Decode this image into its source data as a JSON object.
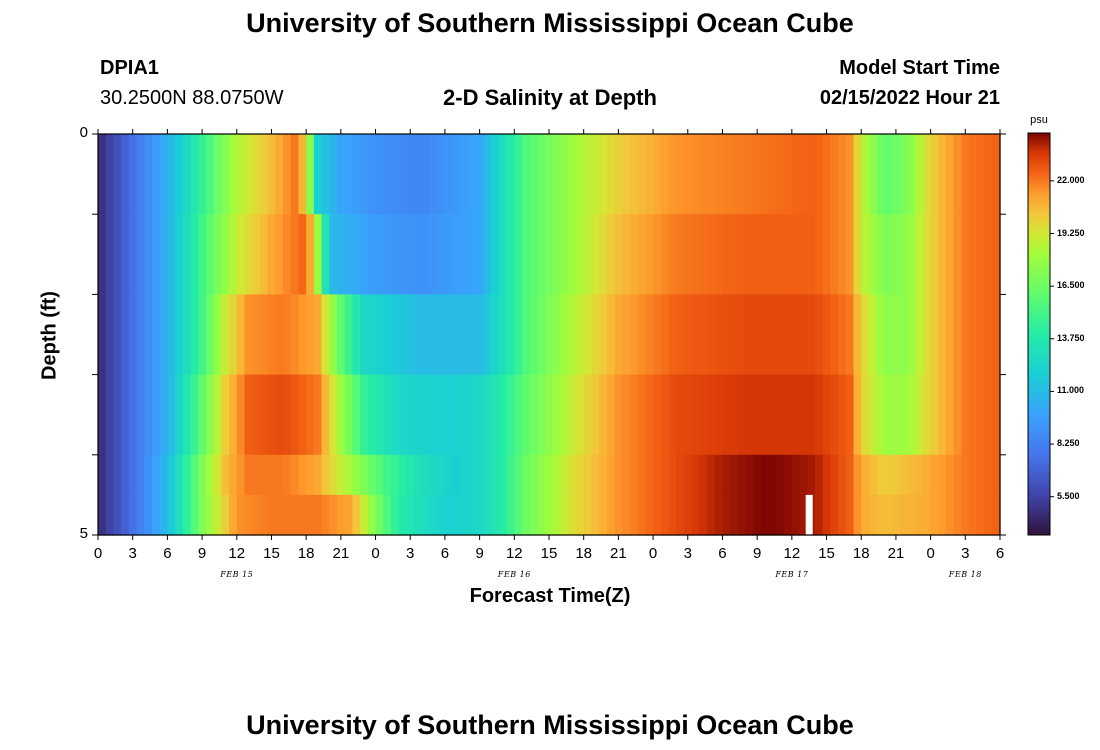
{
  "header": {
    "title": "University of Southern Mississippi Ocean Cube",
    "station_id": "DPIA1",
    "station_coords": "30.2500N  88.0750W",
    "chart_title": "2-D Salinity at Depth",
    "model_start_label": "Model Start Time",
    "model_start_value": "02/15/2022 Hour 21"
  },
  "footer": {
    "title": "University of Southern Mississippi Ocean Cube"
  },
  "chart_data": {
    "type": "heatmap",
    "title": "2-D Salinity at Depth",
    "xlabel": "Forecast Time(Z)",
    "ylabel": "Depth (ft)",
    "x_ticks": [
      "0",
      "3",
      "6",
      "9",
      "12",
      "15",
      "18",
      "21",
      "0",
      "3",
      "6",
      "9",
      "12",
      "15",
      "18",
      "21",
      "0",
      "3",
      "6",
      "9",
      "12",
      "15",
      "18",
      "21",
      "0",
      "3",
      "6"
    ],
    "x_hours": [
      0,
      78
    ],
    "date_labels": [
      {
        "label": "FEB 15",
        "hour": 12
      },
      {
        "label": "FEB 16",
        "hour": 36
      },
      {
        "label": "FEB 17",
        "hour": 60
      },
      {
        "label": "FEB 18",
        "hour": 75
      }
    ],
    "y_ticks": [
      "0",
      "5"
    ],
    "ylim": [
      0,
      5
    ],
    "depth_bands_ft": [
      0.5,
      1.5,
      2.5,
      3.5,
      4.5,
      5.0
    ],
    "colorbar": {
      "unit": "psu",
      "ticks": [
        "22.000",
        "19.250",
        "16.500",
        "13.750",
        "11.000",
        "8.250",
        "5.500"
      ],
      "range": [
        3.5,
        24.5
      ]
    },
    "rows": [
      {
        "depth_ft": 0.5,
        "keyframes": [
          [
            0,
            4.5
          ],
          [
            3,
            7.5
          ],
          [
            6,
            10.5
          ],
          [
            9,
            14.5
          ],
          [
            12,
            18.5
          ],
          [
            15,
            20.5
          ],
          [
            17,
            22
          ],
          [
            18,
            20
          ],
          [
            19,
            12
          ],
          [
            21,
            10
          ],
          [
            24,
            9
          ],
          [
            28,
            8.5
          ],
          [
            33,
            10
          ],
          [
            35,
            13
          ],
          [
            37,
            15.5
          ],
          [
            41,
            18
          ],
          [
            45,
            20
          ],
          [
            50,
            21.5
          ],
          [
            56,
            22
          ],
          [
            62,
            22.5
          ],
          [
            65,
            21.5
          ],
          [
            66,
            19
          ],
          [
            68,
            16
          ],
          [
            70,
            17
          ],
          [
            72,
            20
          ],
          [
            75,
            22
          ],
          [
            78,
            22.5
          ]
        ]
      },
      {
        "depth_ft": 1.5,
        "keyframes": [
          [
            0,
            4.5
          ],
          [
            3,
            7.5
          ],
          [
            6,
            10.5
          ],
          [
            9,
            15
          ],
          [
            12,
            19
          ],
          [
            15,
            21
          ],
          [
            18,
            22.5
          ],
          [
            19,
            18
          ],
          [
            20,
            11
          ],
          [
            24,
            9.5
          ],
          [
            28,
            9
          ],
          [
            33,
            10
          ],
          [
            35,
            13
          ],
          [
            37,
            15.5
          ],
          [
            41,
            18
          ],
          [
            45,
            20.5
          ],
          [
            50,
            22
          ],
          [
            56,
            22.5
          ],
          [
            62,
            22.5
          ],
          [
            65,
            21.5
          ],
          [
            66,
            19
          ],
          [
            68,
            17
          ],
          [
            70,
            17.5
          ],
          [
            72,
            20
          ],
          [
            75,
            22
          ],
          [
            78,
            22.5
          ]
        ]
      },
      {
        "depth_ft": 2.5,
        "keyframes": [
          [
            0,
            4.5
          ],
          [
            3,
            7.5
          ],
          [
            6,
            10.5
          ],
          [
            9,
            15
          ],
          [
            11,
            19
          ],
          [
            13,
            21.5
          ],
          [
            16,
            22
          ],
          [
            19,
            21
          ],
          [
            21,
            16
          ],
          [
            23,
            12.5
          ],
          [
            28,
            11
          ],
          [
            33,
            11
          ],
          [
            35,
            13
          ],
          [
            37,
            15.5
          ],
          [
            41,
            18.5
          ],
          [
            45,
            21
          ],
          [
            50,
            22.5
          ],
          [
            56,
            23
          ],
          [
            62,
            23
          ],
          [
            65,
            22
          ],
          [
            66,
            20
          ],
          [
            68,
            17.5
          ],
          [
            70,
            17.5
          ],
          [
            72,
            20
          ],
          [
            75,
            22
          ],
          [
            78,
            22.5
          ]
        ]
      },
      {
        "depth_ft": 3.5,
        "keyframes": [
          [
            0,
            4.5
          ],
          [
            3,
            7.5
          ],
          [
            6,
            10.5
          ],
          [
            9,
            16
          ],
          [
            11,
            20
          ],
          [
            13,
            22.5
          ],
          [
            16,
            23
          ],
          [
            19,
            22
          ],
          [
            21,
            18
          ],
          [
            23,
            14.5
          ],
          [
            26,
            12.5
          ],
          [
            30,
            12
          ],
          [
            33,
            12.5
          ],
          [
            35,
            14
          ],
          [
            37,
            16
          ],
          [
            41,
            19
          ],
          [
            45,
            21.5
          ],
          [
            50,
            23
          ],
          [
            56,
            23.5
          ],
          [
            62,
            23.5
          ],
          [
            65,
            22.5
          ],
          [
            66,
            20
          ],
          [
            68,
            18
          ],
          [
            70,
            18
          ],
          [
            72,
            20
          ],
          [
            75,
            22
          ],
          [
            78,
            22.5
          ]
        ]
      },
      {
        "depth_ft": 4.5,
        "keyframes": [
          [
            0,
            4.5
          ],
          [
            3,
            7.5
          ],
          [
            6,
            11
          ],
          [
            9,
            17
          ],
          [
            11,
            20.5
          ],
          [
            13,
            22
          ],
          [
            16,
            22
          ],
          [
            19,
            21
          ],
          [
            21,
            19
          ],
          [
            23,
            17
          ],
          [
            25,
            15
          ],
          [
            28,
            13
          ],
          [
            31,
            12
          ],
          [
            33,
            12.5
          ],
          [
            35,
            14
          ],
          [
            37,
            16.5
          ],
          [
            41,
            19.5
          ],
          [
            45,
            21.5
          ],
          [
            50,
            23
          ],
          [
            54,
            24
          ],
          [
            58,
            24.5
          ],
          [
            62,
            24
          ],
          [
            65,
            22.5
          ],
          [
            66,
            21
          ],
          [
            68,
            20
          ],
          [
            72,
            21
          ],
          [
            75,
            22
          ],
          [
            78,
            22.5
          ]
        ]
      },
      {
        "depth_ft": 5.0,
        "keyframes": [
          [
            0,
            4.5
          ],
          [
            3,
            7.5
          ],
          [
            6,
            11
          ],
          [
            9,
            17
          ],
          [
            11,
            20
          ],
          [
            12,
            21.5
          ],
          [
            15,
            22
          ],
          [
            19,
            22
          ],
          [
            22,
            21
          ],
          [
            24,
            17
          ],
          [
            26,
            14
          ],
          [
            30,
            12
          ],
          [
            33,
            12.5
          ],
          [
            35,
            14
          ],
          [
            37,
            16.5
          ],
          [
            41,
            19.5
          ],
          [
            45,
            21.5
          ],
          [
            50,
            23
          ],
          [
            54,
            24
          ],
          [
            58,
            24.5
          ],
          [
            62,
            24
          ],
          [
            65,
            22.5
          ],
          [
            66,
            21
          ],
          [
            68,
            20.5
          ],
          [
            72,
            21
          ],
          [
            75,
            22
          ],
          [
            78,
            22.5
          ]
        ]
      }
    ],
    "gap_marker": {
      "hour": 61.5,
      "depth_ft": [
        4.5,
        5.0
      ]
    }
  }
}
